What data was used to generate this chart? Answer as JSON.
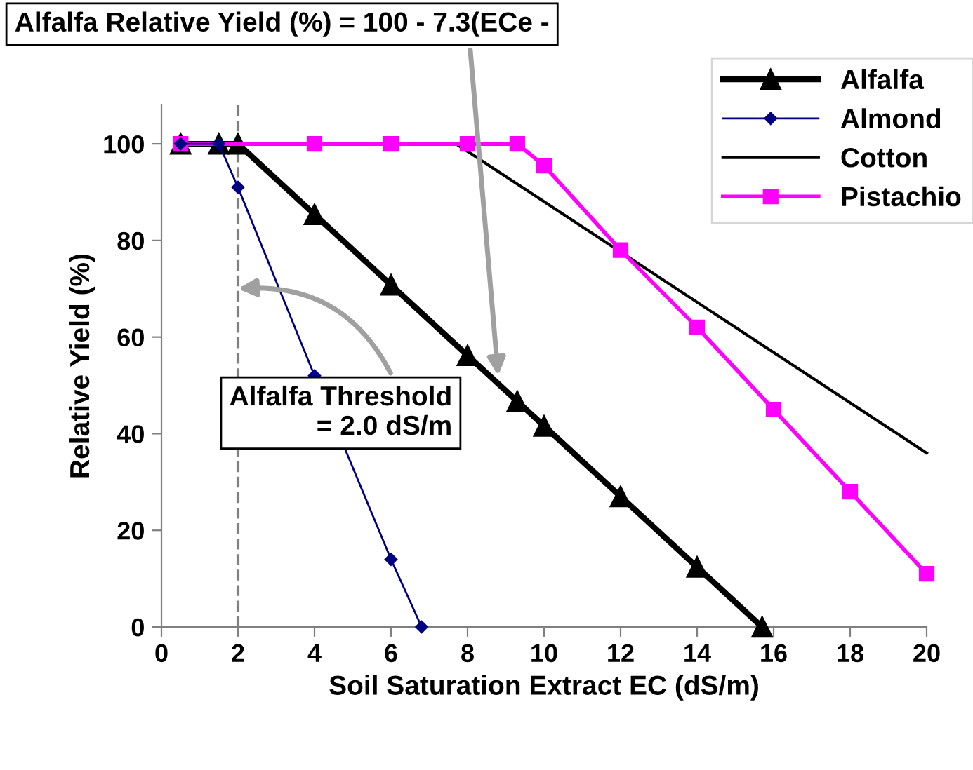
{
  "chart_data": {
    "type": "line",
    "xlabel": "Soil Saturation Extract EC (dS/m)",
    "ylabel": "Relative Yield (%)",
    "xlim": [
      0,
      20
    ],
    "xticks": [
      0,
      2,
      4,
      6,
      8,
      10,
      12,
      14,
      16,
      18,
      20
    ],
    "ylim": [
      0,
      108
    ],
    "yticks": [
      0,
      20,
      40,
      60,
      80,
      100
    ],
    "grid": false,
    "legend": "top right",
    "line_style": "solid",
    "series": [
      {
        "name": "Alfalfa",
        "color": "#000000",
        "marker": "triangle",
        "x": [
          0.5,
          1.5,
          2,
          4,
          6,
          8,
          9.3,
          10,
          12,
          14,
          15.7
        ],
        "values": [
          100,
          100,
          100,
          85.4,
          70.8,
          56.2,
          46.7,
          41.6,
          27,
          12.4,
          0
        ]
      },
      {
        "name": "Almond",
        "color": "#000080",
        "marker": "diamond",
        "x": [
          0.5,
          1.5,
          2,
          4,
          6,
          6.8
        ],
        "values": [
          100,
          100,
          91,
          52,
          14,
          0
        ]
      },
      {
        "name": "Cotton",
        "color": "#000000",
        "marker": "none",
        "x": [
          7.7,
          20
        ],
        "values": [
          100,
          36
        ]
      },
      {
        "name": "Pistachio",
        "color": "#ff00ff",
        "marker": "square",
        "x": [
          0.5,
          4,
          6,
          8,
          9.3,
          10,
          12,
          14,
          16,
          18,
          20
        ],
        "values": [
          100,
          100,
          100,
          100,
          100,
          95.5,
          78,
          62,
          45,
          28,
          11
        ]
      }
    ],
    "ref_lines": [
      {
        "axis": "x",
        "value": 2,
        "color": "#808080",
        "line_style": "dashed"
      }
    ],
    "annotations": [
      {
        "text": "Alfalfa Relative Yield (%) = 100 - 7.3(ECe -",
        "x": 8.8,
        "y": 52
      },
      {
        "text": "Alfalfa Threshold\n= 2.0 dS/m",
        "x": 2,
        "y": 70
      }
    ]
  }
}
